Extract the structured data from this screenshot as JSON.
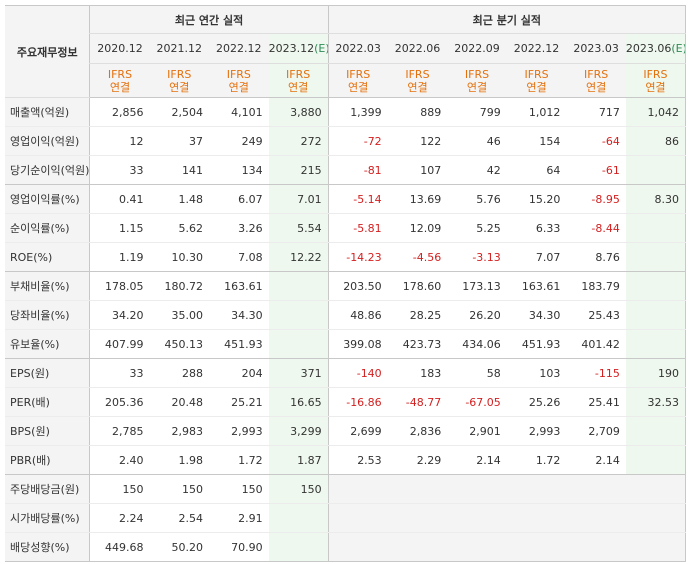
{
  "header": {
    "corner_label": "주요재무정보",
    "annual_title": "최근 연간 실적",
    "quarter_title": "최근 분기 실적",
    "periods": [
      {
        "label": "2020.12",
        "est": ""
      },
      {
        "label": "2021.12",
        "est": ""
      },
      {
        "label": "2022.12",
        "est": ""
      },
      {
        "label": "2023.12",
        "est": "(E)"
      },
      {
        "label": "2022.03",
        "est": ""
      },
      {
        "label": "2022.06",
        "est": ""
      },
      {
        "label": "2022.09",
        "est": ""
      },
      {
        "label": "2022.12",
        "est": ""
      },
      {
        "label": "2023.03",
        "est": ""
      },
      {
        "label": "2023.06",
        "est": "(E)"
      }
    ],
    "ifrs_line1": "IFRS",
    "ifrs_line2": "연결"
  },
  "rows": [
    {
      "label": "매출액(억원)",
      "values": [
        "2,856",
        "2,504",
        "4,101",
        "3,880",
        "1,399",
        "889",
        "799",
        "1,012",
        "717",
        "1,042"
      ]
    },
    {
      "label": "영업이익(억원)",
      "values": [
        "12",
        "37",
        "249",
        "272",
        "-72",
        "122",
        "46",
        "154",
        "-64",
        "86"
      ]
    },
    {
      "label": "당기순이익(억원)",
      "values": [
        "33",
        "141",
        "134",
        "215",
        "-81",
        "107",
        "42",
        "64",
        "-61",
        ""
      ]
    },
    {
      "label": "영업이익률(%)",
      "values": [
        "0.41",
        "1.48",
        "6.07",
        "7.01",
        "-5.14",
        "13.69",
        "5.76",
        "15.20",
        "-8.95",
        "8.30"
      ]
    },
    {
      "label": "순이익률(%)",
      "values": [
        "1.15",
        "5.62",
        "3.26",
        "5.54",
        "-5.81",
        "12.09",
        "5.25",
        "6.33",
        "-8.44",
        ""
      ]
    },
    {
      "label": "ROE(%)",
      "values": [
        "1.19",
        "10.30",
        "7.08",
        "12.22",
        "-14.23",
        "-4.56",
        "-3.13",
        "7.07",
        "8.76",
        ""
      ]
    },
    {
      "label": "부채비율(%)",
      "values": [
        "178.05",
        "180.72",
        "163.61",
        "",
        "203.50",
        "178.60",
        "173.13",
        "163.61",
        "183.79",
        ""
      ]
    },
    {
      "label": "당좌비율(%)",
      "values": [
        "34.20",
        "35.00",
        "34.30",
        "",
        "48.86",
        "28.25",
        "26.20",
        "34.30",
        "25.43",
        ""
      ]
    },
    {
      "label": "유보율(%)",
      "values": [
        "407.99",
        "450.13",
        "451.93",
        "",
        "399.08",
        "423.73",
        "434.06",
        "451.93",
        "401.42",
        ""
      ]
    },
    {
      "label": "EPS(원)",
      "values": [
        "33",
        "288",
        "204",
        "371",
        "-140",
        "183",
        "58",
        "103",
        "-115",
        "190"
      ]
    },
    {
      "label": "PER(배)",
      "values": [
        "205.36",
        "20.48",
        "25.21",
        "16.65",
        "-16.86",
        "-48.77",
        "-67.05",
        "25.26",
        "25.41",
        "32.53"
      ]
    },
    {
      "label": "BPS(원)",
      "values": [
        "2,785",
        "2,983",
        "2,993",
        "3,299",
        "2,699",
        "2,836",
        "2,901",
        "2,993",
        "2,709",
        ""
      ]
    },
    {
      "label": "PBR(배)",
      "values": [
        "2.40",
        "1.98",
        "1.72",
        "1.87",
        "2.53",
        "2.29",
        "2.14",
        "1.72",
        "2.14",
        ""
      ]
    },
    {
      "label": "주당배당금(원)",
      "values": [
        "150",
        "150",
        "150",
        "150",
        "",
        "",
        "",
        "",
        "",
        ""
      ]
    },
    {
      "label": "시가배당률(%)",
      "values": [
        "2.24",
        "2.54",
        "2.91",
        "",
        "",
        "",
        "",
        "",
        "",
        ""
      ]
    },
    {
      "label": "배당성향(%)",
      "values": [
        "449.68",
        "50.20",
        "70.90",
        "",
        "",
        "",
        "",
        "",
        "",
        ""
      ]
    }
  ],
  "colors": {
    "negative": "#d31f1f",
    "ifrs": "#e4700c",
    "estimate_bg": "#eef8ee",
    "estimate_mark": "#2e8b57",
    "header_bg": "#f4f4f4"
  }
}
